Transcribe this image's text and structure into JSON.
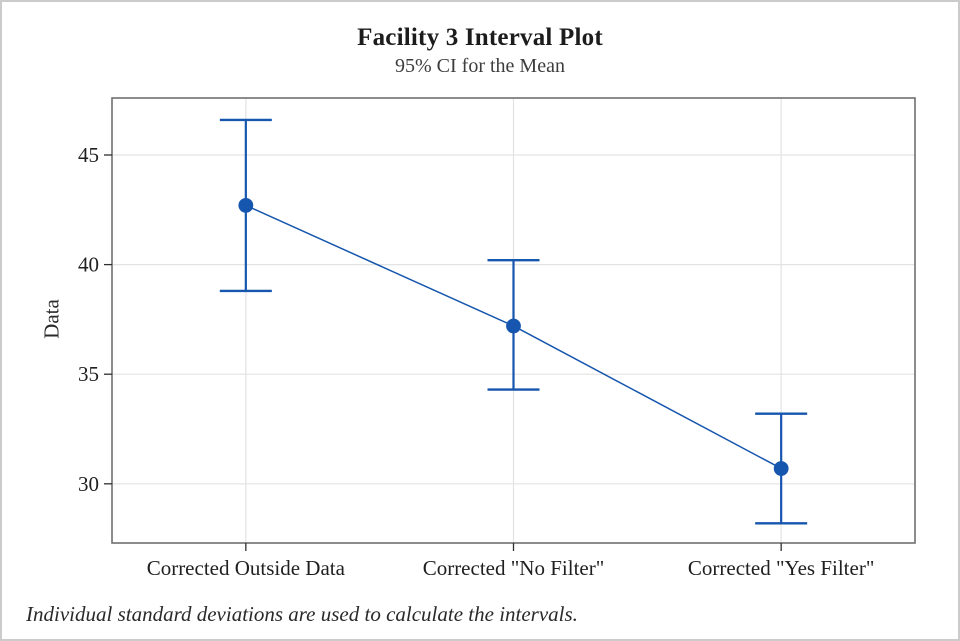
{
  "chart_data": {
    "type": "line",
    "variant": "interval-plot-95ci",
    "title": "Facility 3 Interval Plot",
    "subtitle": "95% CI for the Mean",
    "xlabel": "",
    "ylabel": "Data",
    "footnote": "Individual standard deviations are used to calculate the intervals.",
    "categories": [
      "Corrected Outside Data",
      "Corrected \"No Filter\"",
      "Corrected \"Yes Filter\""
    ],
    "series": [
      {
        "name": "Mean",
        "values": [
          42.7,
          37.2,
          30.7
        ]
      }
    ],
    "ci_lower": [
      38.8,
      34.3,
      28.2
    ],
    "ci_upper": [
      46.6,
      40.2,
      33.2
    ],
    "confidence_level": "95%",
    "yticks": [
      30,
      35,
      40,
      45
    ],
    "ylim": [
      27.3,
      47.6
    ],
    "grid": true,
    "legend_position": "none",
    "colors": {
      "series": "#1656AE",
      "gridline": "#e3e3e3",
      "plot_border": "#6f6f6f",
      "tick": "#2f2f2f",
      "outer_border": "#cbcbcb"
    }
  }
}
